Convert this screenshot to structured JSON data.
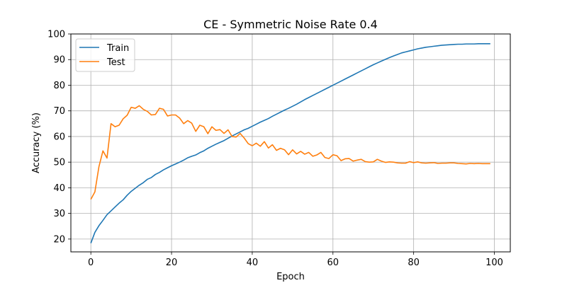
{
  "chart_data": {
    "type": "line",
    "title": "CE - Symmetric Noise Rate 0.4",
    "xlabel": "Epoch",
    "ylabel": "Accuracy (%)",
    "xlim": [
      -4.95,
      103.95
    ],
    "ylim": [
      15,
      100
    ],
    "xticks": [
      0,
      20,
      40,
      60,
      80,
      100
    ],
    "yticks": [
      20,
      30,
      40,
      50,
      60,
      70,
      80,
      90,
      100
    ],
    "grid": true,
    "legend_position": "top-left",
    "x": [
      0,
      1,
      2,
      3,
      4,
      5,
      6,
      7,
      8,
      9,
      10,
      11,
      12,
      13,
      14,
      15,
      16,
      17,
      18,
      19,
      20,
      21,
      22,
      23,
      24,
      25,
      26,
      27,
      28,
      29,
      30,
      31,
      32,
      33,
      34,
      35,
      36,
      37,
      38,
      39,
      40,
      41,
      42,
      43,
      44,
      45,
      46,
      47,
      48,
      49,
      50,
      51,
      52,
      53,
      54,
      55,
      56,
      57,
      58,
      59,
      60,
      61,
      62,
      63,
      64,
      65,
      66,
      67,
      68,
      69,
      70,
      71,
      72,
      73,
      74,
      75,
      76,
      77,
      78,
      79,
      80,
      81,
      82,
      83,
      84,
      85,
      86,
      87,
      88,
      89,
      90,
      91,
      92,
      93,
      94,
      95,
      96,
      97,
      98,
      99
    ],
    "series": [
      {
        "name": "Train",
        "color": "#1f77b4",
        "values": [
          18.4,
          22.6,
          25.2,
          27.3,
          29.5,
          31.0,
          32.5,
          34.0,
          35.3,
          37.1,
          38.6,
          39.8,
          41.0,
          42.0,
          43.3,
          44.0,
          45.2,
          46.0,
          47.0,
          47.8,
          48.6,
          49.3,
          50.0,
          50.8,
          51.7,
          52.3,
          52.8,
          53.7,
          54.4,
          55.4,
          56.2,
          57.0,
          57.7,
          58.4,
          59.3,
          60.2,
          61.0,
          61.8,
          62.6,
          63.2,
          64.0,
          64.8,
          65.6,
          66.3,
          67.0,
          67.9,
          68.7,
          69.5,
          70.3,
          71.0,
          71.8,
          72.6,
          73.5,
          74.4,
          75.2,
          76.0,
          76.8,
          77.6,
          78.4,
          79.2,
          80.0,
          80.8,
          81.6,
          82.4,
          83.2,
          84.0,
          84.8,
          85.6,
          86.4,
          87.2,
          88.0,
          88.7,
          89.4,
          90.1,
          90.8,
          91.4,
          92.0,
          92.6,
          93.0,
          93.4,
          93.8,
          94.2,
          94.5,
          94.8,
          95.0,
          95.2,
          95.4,
          95.6,
          95.7,
          95.8,
          95.9,
          96.0,
          96.0,
          96.1,
          96.1,
          96.1,
          96.2,
          96.2,
          96.2,
          96.2
        ]
      },
      {
        "name": "Test",
        "color": "#ff7f0e",
        "values": [
          35.5,
          38.4,
          48.2,
          54.4,
          51.6,
          65.0,
          63.8,
          64.4,
          66.9,
          68.3,
          71.4,
          71.0,
          72.0,
          70.6,
          69.8,
          68.4,
          68.6,
          71.0,
          70.6,
          68.0,
          68.4,
          68.4,
          67.2,
          65.0,
          66.2,
          65.2,
          62.0,
          64.4,
          63.8,
          61.1,
          63.8,
          62.4,
          62.7,
          61.2,
          62.6,
          60.0,
          59.8,
          61.2,
          59.4,
          57.2,
          56.4,
          57.4,
          56.2,
          58.0,
          55.5,
          56.8,
          54.6,
          55.4,
          54.8,
          52.9,
          54.8,
          53.2,
          54.2,
          53.1,
          53.8,
          52.3,
          52.8,
          53.8,
          51.8,
          51.4,
          52.9,
          52.5,
          50.6,
          51.3,
          51.4,
          50.4,
          50.8,
          51.1,
          50.2,
          50.0,
          50.1,
          51.1,
          50.4,
          49.9,
          50.1,
          50.0,
          49.7,
          49.6,
          49.6,
          50.2,
          49.8,
          50.1,
          49.7,
          49.6,
          49.7,
          49.8,
          49.5,
          49.6,
          49.6,
          49.7,
          49.7,
          49.5,
          49.4,
          49.3,
          49.5,
          49.4,
          49.5,
          49.4,
          49.4,
          49.4
        ]
      }
    ]
  }
}
